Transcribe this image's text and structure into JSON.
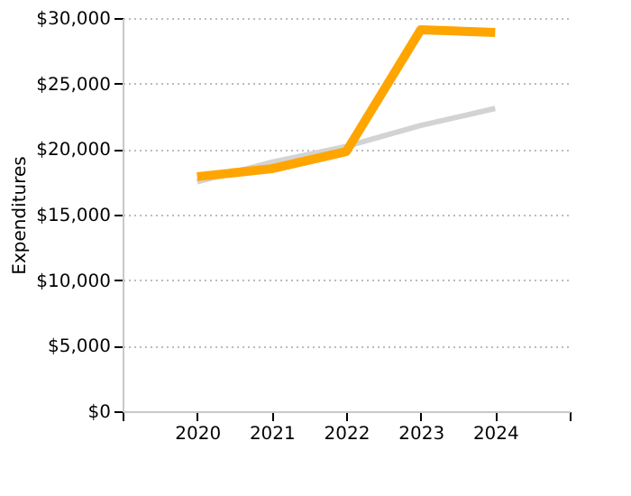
{
  "chart_data": {
    "type": "line",
    "ylabel": "Expenditures",
    "x": [
      2020,
      2021,
      2022,
      2023,
      2024
    ],
    "series": [
      {
        "color": "#d3d3d3",
        "values": [
          17500,
          19000,
          20200,
          21800,
          23100
        ]
      },
      {
        "color": "#ffa500",
        "values": [
          17900,
          18500,
          19800,
          29100,
          28900
        ]
      }
    ],
    "xlim": [
      2019,
      2025
    ],
    "xticks": [
      {
        "value": 2019,
        "label": null
      },
      2020,
      2021,
      2022,
      2023,
      2024,
      {
        "value": 2025,
        "label": null
      }
    ],
    "ylim": [
      0,
      30000
    ],
    "yticks": [
      {
        "value": 0,
        "label": "$0"
      },
      {
        "value": 5000,
        "label": "$5,000"
      },
      {
        "value": 10000,
        "label": "$10,000"
      },
      {
        "value": 15000,
        "label": "$15,000"
      },
      {
        "value": 20000,
        "label": "$20,000"
      },
      {
        "value": 25000,
        "label": "$25,000"
      },
      {
        "value": 30000,
        "label": "$30,000"
      }
    ],
    "grid": "y",
    "marker": "none",
    "line_style": "solid"
  }
}
